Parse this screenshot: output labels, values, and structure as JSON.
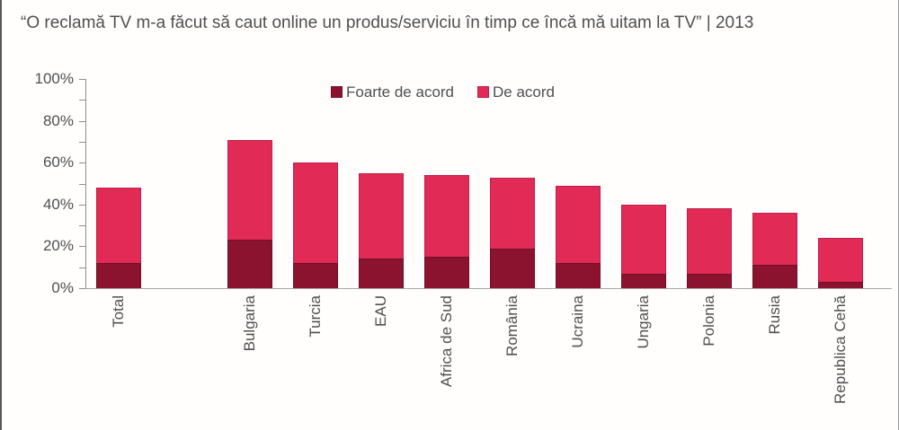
{
  "title": "“O reclamă TV m-a făcut să caut online un produs/serviciu în timp ce încă mă uitam la TV” | 2013",
  "legend": [
    {
      "label": "Foarte de acord",
      "color": "#8C1330"
    },
    {
      "label": "De acord",
      "color": "#E12A55"
    }
  ],
  "colors": {
    "foarte_de_acord": "#8C1330",
    "de_acord": "#E12A55",
    "axis": "#8f8f8f",
    "text": "#4f4f51"
  },
  "chart_data": {
    "type": "bar",
    "stacked": true,
    "title": "“O reclamă TV m-a făcut să caut online un produs/serviciu în timp ce încă mă uitam la TV” | 2013",
    "categories": [
      "Total",
      "Bulgaria",
      "Turcia",
      "EAU",
      "Africa de Sud",
      "România",
      "Ucraina",
      "Ungaria",
      "Polonia",
      "Rusia",
      "Republica Cehă"
    ],
    "series": [
      {
        "name": "Foarte de acord",
        "color": "#8C1330",
        "values": [
          12,
          23,
          12,
          14,
          15,
          19,
          12,
          7,
          7,
          11,
          3
        ]
      },
      {
        "name": "De acord",
        "color": "#E12A55",
        "values": [
          36,
          48,
          48,
          41,
          39,
          34,
          37,
          33,
          31,
          25,
          21
        ]
      }
    ],
    "totals": [
      48,
      71,
      60,
      55,
      54,
      53,
      49,
      40,
      38,
      36,
      24
    ],
    "y_tick_labels": [
      "0%",
      "20%",
      "40%",
      "60%",
      "80%",
      "100%"
    ],
    "ylim": [
      0,
      100
    ],
    "grid": false,
    "legend_position": "top-center",
    "x_label_rotation": -90,
    "gap_slot_after_index": 0
  }
}
